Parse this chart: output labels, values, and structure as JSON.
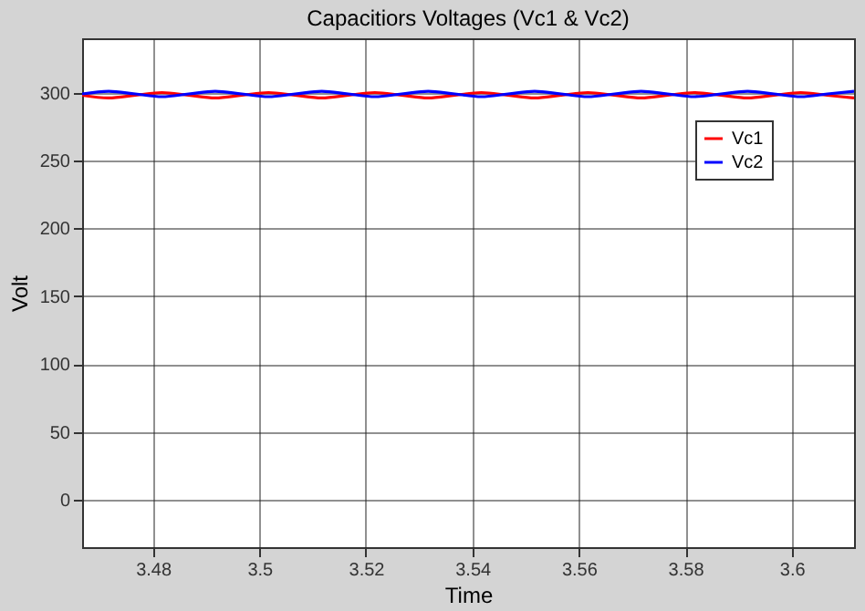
{
  "chart_data": {
    "type": "line",
    "title": "Capacitiors Voltages (Vc1 & Vc2)",
    "xlabel": "Time",
    "ylabel": "Volt",
    "x": [
      3.4667,
      3.4717,
      3.4767,
      3.4817,
      3.4867,
      3.4917,
      3.4967,
      3.5017,
      3.5067,
      3.5117,
      3.5167,
      3.5217,
      3.5267,
      3.5317,
      3.5367,
      3.5417,
      3.5467,
      3.5517,
      3.5567,
      3.5617,
      3.5667,
      3.5717,
      3.5767,
      3.5817,
      3.5867,
      3.5917,
      3.5967,
      3.6017,
      3.6067,
      3.6117
    ],
    "series": [
      {
        "name": "Vc1",
        "color": "#ff0000",
        "values": [
          298,
          296,
          298,
          300,
          298,
          296,
          298,
          300,
          298,
          296,
          298,
          300,
          298,
          296,
          298,
          300,
          298,
          296,
          298,
          300,
          298,
          296,
          298,
          300,
          298,
          296,
          298,
          300,
          298,
          296
        ]
      },
      {
        "name": "Vc2",
        "color": "#0000ff",
        "values": [
          299,
          301,
          299,
          297,
          299,
          301,
          299,
          297,
          299,
          301,
          299,
          297,
          299,
          301,
          299,
          297,
          299,
          301,
          299,
          297,
          299,
          301,
          299,
          297,
          299,
          301,
          299,
          297,
          299,
          301
        ]
      }
    ],
    "xlim": [
      3.4667,
      3.6117
    ],
    "xticks": [
      3.48,
      3.5,
      3.52,
      3.54,
      3.56,
      3.58,
      3.6
    ],
    "ylim": [
      -35,
      340
    ],
    "yticks": [
      0,
      50,
      100,
      150,
      200,
      250,
      300
    ],
    "grid": true,
    "legend": "top right",
    "marker": "none",
    "line_style": "solid"
  }
}
